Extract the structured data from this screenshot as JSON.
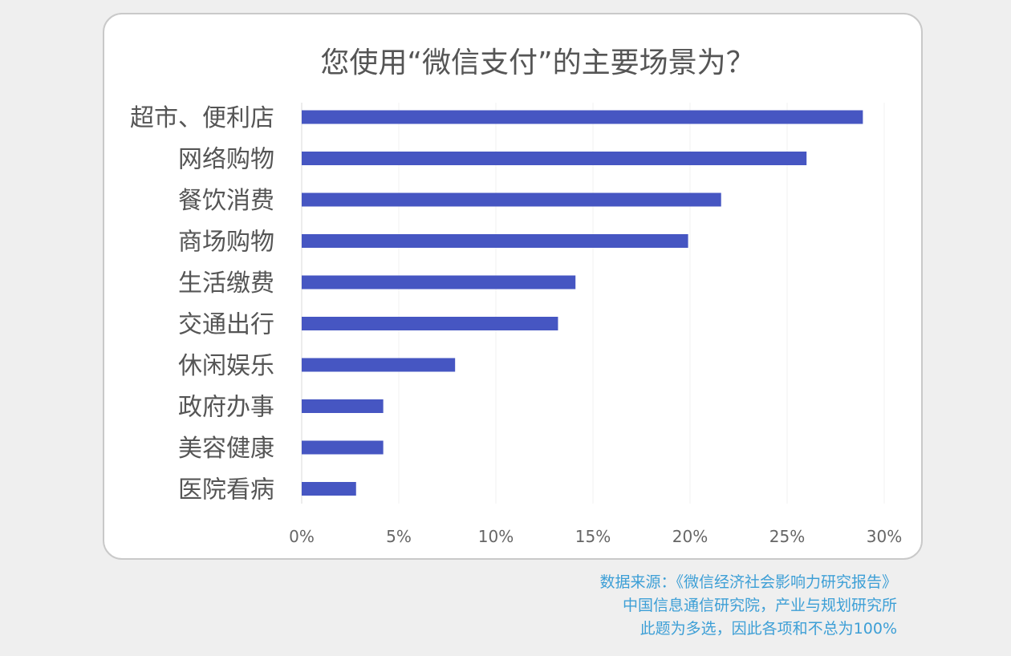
{
  "chart_data": {
    "type": "bar",
    "orientation": "horizontal",
    "title": "您使用“微信支付”的主要场景为？",
    "categories": [
      "超市、便利店",
      "网络购物",
      "餐饮消费",
      "商场购物",
      "生活缴费",
      "交通出行",
      "休闲娱乐",
      "政府办事",
      "美容健康",
      "医院看病"
    ],
    "values": [
      28.9,
      26.0,
      21.6,
      19.9,
      14.1,
      13.2,
      7.9,
      4.2,
      4.2,
      2.8
    ],
    "xlim": [
      0,
      30
    ],
    "xticks": [
      "0%",
      "5%",
      "10%",
      "15%",
      "20%",
      "25%",
      "30%"
    ],
    "xlabel": "",
    "ylabel": "",
    "bar_color": "#4656c2",
    "grid": true,
    "legend": "none"
  },
  "footer": {
    "source_line1": "数据来源：《微信经济社会影响力研究报告》",
    "source_line2": "中国信息通信研究院，产业与规划研究所",
    "source_line3": "此题为多选，因此各项和不总为100%"
  },
  "colors": {
    "background": "#efefef",
    "card": "#ffffff",
    "text": "#555555",
    "note": "#3d9fd6"
  }
}
